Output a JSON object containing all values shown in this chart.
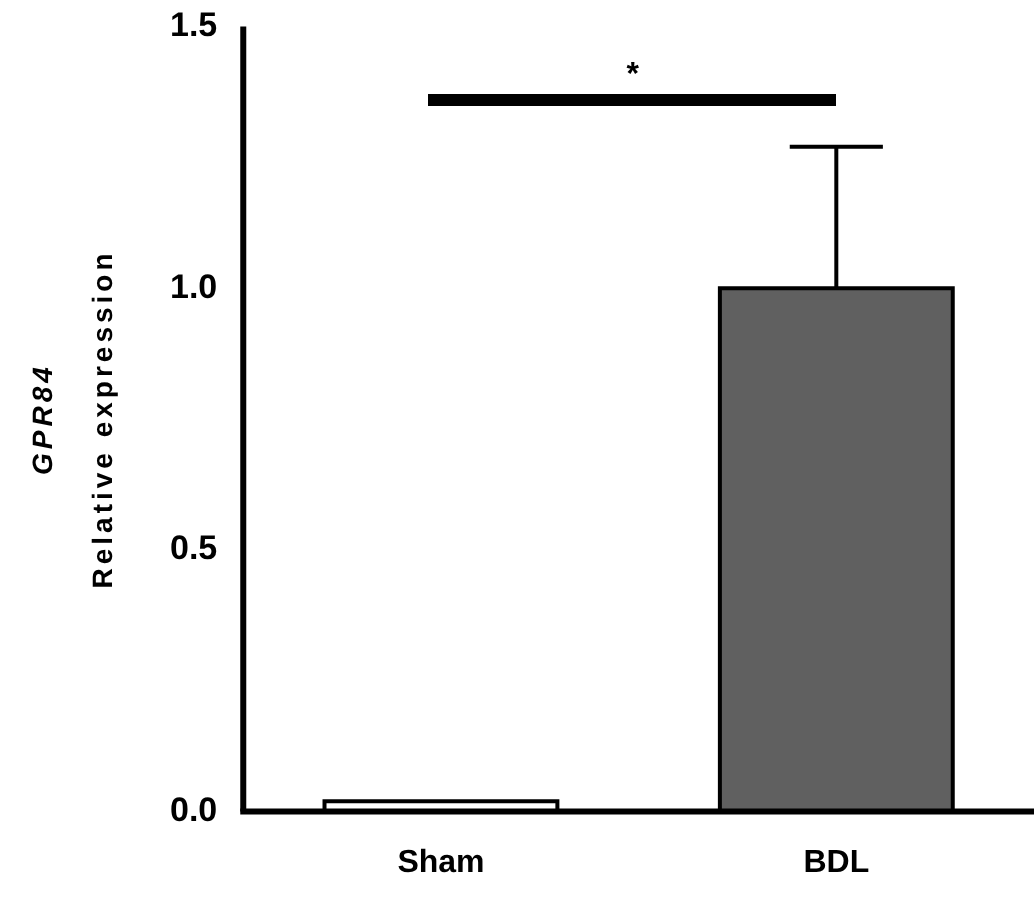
{
  "chart_data": {
    "type": "bar",
    "ylabel": "GPR84\nRelative expression",
    "categories": [
      "Sham",
      "BDL"
    ],
    "values": [
      0.02,
      1.0
    ],
    "colors": [
      "#ffffff",
      "#606060"
    ],
    "errors": [
      null,
      [
        1.0,
        1.27
      ]
    ],
    "ylim": [
      0,
      1.5
    ],
    "yticks": [
      {
        "value": 0,
        "label": "0.0"
      },
      {
        "value": 0.5,
        "label": "0.5"
      },
      {
        "value": 1,
        "label": "1.0"
      },
      {
        "value": 1.5,
        "label": "1.5"
      }
    ],
    "grid": false,
    "legend": false,
    "annotations": [
      "*"
    ]
  }
}
